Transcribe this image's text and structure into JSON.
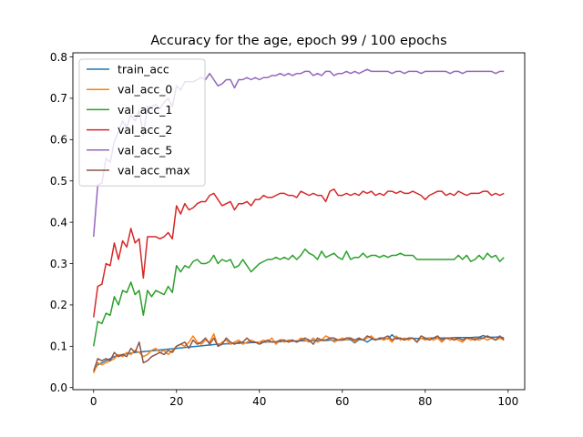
{
  "chart_data": {
    "type": "line",
    "title": "Accuracy for the age, epoch 99 / 100 epochs",
    "xlabel": "",
    "ylabel": "",
    "xlim": [
      -5,
      104
    ],
    "ylim": [
      -0.005,
      0.81
    ],
    "xticks": [
      0,
      20,
      40,
      60,
      80,
      100
    ],
    "yticks": [
      0.0,
      0.1,
      0.2,
      0.3,
      0.4,
      0.5,
      0.6,
      0.7,
      0.8
    ],
    "grid": false,
    "legend_position": "upper-left",
    "x": [
      0,
      1,
      2,
      3,
      4,
      5,
      6,
      7,
      8,
      9,
      10,
      11,
      12,
      13,
      14,
      15,
      16,
      17,
      18,
      19,
      20,
      21,
      22,
      23,
      24,
      25,
      26,
      27,
      28,
      29,
      30,
      31,
      32,
      33,
      34,
      35,
      36,
      37,
      38,
      39,
      40,
      41,
      42,
      43,
      44,
      45,
      46,
      47,
      48,
      49,
      50,
      51,
      52,
      53,
      54,
      55,
      56,
      57,
      58,
      59,
      60,
      61,
      62,
      63,
      64,
      65,
      66,
      67,
      68,
      69,
      70,
      71,
      72,
      73,
      74,
      75,
      76,
      77,
      78,
      79,
      80,
      81,
      82,
      83,
      84,
      85,
      86,
      87,
      88,
      89,
      90,
      91,
      92,
      93,
      94,
      95,
      96,
      97,
      98,
      99
    ],
    "series": [
      {
        "name": "train_acc",
        "color": "#1f77b4",
        "values": [
          0.04,
          0.055,
          0.06,
          0.065,
          0.07,
          0.075,
          0.078,
          0.08,
          0.082,
          0.083,
          0.085,
          0.086,
          0.087,
          0.088,
          0.089,
          0.09,
          0.091,
          0.092,
          0.093,
          0.094,
          0.095,
          0.096,
          0.097,
          0.098,
          0.099,
          0.1,
          0.101,
          0.102,
          0.103,
          0.104,
          0.105,
          0.105,
          0.106,
          0.106,
          0.107,
          0.107,
          0.108,
          0.108,
          0.109,
          0.109,
          0.11,
          0.11,
          0.11,
          0.111,
          0.111,
          0.111,
          0.112,
          0.112,
          0.112,
          0.113,
          0.113,
          0.113,
          0.113,
          0.114,
          0.114,
          0.114,
          0.114,
          0.115,
          0.115,
          0.115,
          0.115,
          0.116,
          0.116,
          0.108,
          0.116,
          0.116,
          0.11,
          0.117,
          0.117,
          0.117,
          0.118,
          0.118,
          0.128,
          0.118,
          0.118,
          0.118,
          0.119,
          0.119,
          0.119,
          0.119,
          0.119,
          0.12,
          0.12,
          0.12,
          0.12,
          0.12,
          0.12,
          0.121,
          0.121,
          0.121,
          0.121,
          0.121,
          0.122,
          0.122,
          0.126,
          0.122,
          0.122,
          0.122,
          0.123,
          0.12
        ]
      },
      {
        "name": "val_acc_0",
        "color": "#ff7f0e",
        "values": [
          0.035,
          0.06,
          0.055,
          0.06,
          0.065,
          0.07,
          0.08,
          0.075,
          0.085,
          0.08,
          0.09,
          0.085,
          0.075,
          0.08,
          0.09,
          0.095,
          0.085,
          0.09,
          0.08,
          0.09,
          0.1,
          0.105,
          0.1,
          0.11,
          0.125,
          0.11,
          0.105,
          0.115,
          0.11,
          0.13,
          0.1,
          0.11,
          0.115,
          0.105,
          0.11,
          0.115,
          0.105,
          0.11,
          0.115,
          0.11,
          0.11,
          0.115,
          0.11,
          0.12,
          0.105,
          0.115,
          0.11,
          0.115,
          0.115,
          0.11,
          0.12,
          0.115,
          0.11,
          0.12,
          0.11,
          0.115,
          0.125,
          0.12,
          0.11,
          0.115,
          0.12,
          0.115,
          0.12,
          0.11,
          0.12,
          0.115,
          0.12,
          0.125,
          0.115,
          0.12,
          0.115,
          0.12,
          0.11,
          0.125,
          0.115,
          0.12,
          0.115,
          0.12,
          0.11,
          0.12,
          0.115,
          0.12,
          0.115,
          0.12,
          0.11,
          0.12,
          0.115,
          0.12,
          0.115,
          0.11,
          0.12,
          0.115,
          0.12,
          0.115,
          0.12,
          0.115,
          0.12,
          0.115,
          0.12,
          0.115
        ]
      },
      {
        "name": "val_acc_1",
        "color": "#2ca02c",
        "values": [
          0.1,
          0.16,
          0.155,
          0.18,
          0.175,
          0.22,
          0.2,
          0.235,
          0.23,
          0.255,
          0.225,
          0.235,
          0.175,
          0.235,
          0.22,
          0.235,
          0.23,
          0.225,
          0.245,
          0.23,
          0.295,
          0.28,
          0.295,
          0.29,
          0.305,
          0.31,
          0.3,
          0.3,
          0.305,
          0.32,
          0.3,
          0.31,
          0.305,
          0.31,
          0.29,
          0.295,
          0.31,
          0.295,
          0.28,
          0.29,
          0.3,
          0.305,
          0.31,
          0.31,
          0.315,
          0.31,
          0.315,
          0.31,
          0.32,
          0.31,
          0.32,
          0.335,
          0.325,
          0.32,
          0.31,
          0.33,
          0.315,
          0.32,
          0.325,
          0.315,
          0.31,
          0.33,
          0.31,
          0.315,
          0.315,
          0.325,
          0.315,
          0.32,
          0.32,
          0.315,
          0.32,
          0.315,
          0.32,
          0.32,
          0.325,
          0.32,
          0.32,
          0.32,
          0.31,
          0.31,
          0.31,
          0.31,
          0.31,
          0.31,
          0.31,
          0.31,
          0.31,
          0.31,
          0.32,
          0.31,
          0.32,
          0.305,
          0.31,
          0.32,
          0.31,
          0.325,
          0.315,
          0.32,
          0.305,
          0.315
        ]
      },
      {
        "name": "val_acc_2",
        "color": "#d62728",
        "values": [
          0.17,
          0.245,
          0.25,
          0.3,
          0.295,
          0.35,
          0.31,
          0.355,
          0.34,
          0.385,
          0.35,
          0.36,
          0.265,
          0.365,
          0.365,
          0.365,
          0.36,
          0.365,
          0.375,
          0.36,
          0.44,
          0.42,
          0.445,
          0.43,
          0.435,
          0.445,
          0.45,
          0.45,
          0.465,
          0.47,
          0.455,
          0.44,
          0.445,
          0.45,
          0.43,
          0.445,
          0.445,
          0.45,
          0.44,
          0.455,
          0.455,
          0.465,
          0.46,
          0.46,
          0.465,
          0.47,
          0.47,
          0.465,
          0.465,
          0.46,
          0.475,
          0.47,
          0.465,
          0.47,
          0.465,
          0.465,
          0.45,
          0.475,
          0.48,
          0.465,
          0.465,
          0.47,
          0.465,
          0.47,
          0.465,
          0.475,
          0.47,
          0.475,
          0.465,
          0.47,
          0.465,
          0.475,
          0.475,
          0.47,
          0.475,
          0.47,
          0.47,
          0.475,
          0.47,
          0.465,
          0.455,
          0.465,
          0.47,
          0.475,
          0.475,
          0.465,
          0.47,
          0.465,
          0.475,
          0.47,
          0.465,
          0.47,
          0.47,
          0.47,
          0.475,
          0.475,
          0.465,
          0.47,
          0.465,
          0.47
        ]
      },
      {
        "name": "val_acc_5",
        "color": "#9467bd",
        "values": [
          0.365,
          0.49,
          0.495,
          0.555,
          0.545,
          0.595,
          0.62,
          0.645,
          0.63,
          0.66,
          0.645,
          0.67,
          0.61,
          0.68,
          0.68,
          0.685,
          0.675,
          0.69,
          0.7,
          0.68,
          0.73,
          0.72,
          0.74,
          0.74,
          0.74,
          0.745,
          0.75,
          0.745,
          0.76,
          0.745,
          0.73,
          0.735,
          0.745,
          0.745,
          0.725,
          0.745,
          0.745,
          0.75,
          0.745,
          0.75,
          0.745,
          0.75,
          0.75,
          0.755,
          0.755,
          0.76,
          0.755,
          0.76,
          0.755,
          0.76,
          0.76,
          0.765,
          0.765,
          0.755,
          0.76,
          0.755,
          0.765,
          0.765,
          0.755,
          0.76,
          0.76,
          0.765,
          0.76,
          0.765,
          0.76,
          0.765,
          0.77,
          0.765,
          0.765,
          0.765,
          0.765,
          0.765,
          0.76,
          0.765,
          0.765,
          0.76,
          0.765,
          0.765,
          0.765,
          0.76,
          0.765,
          0.765,
          0.765,
          0.765,
          0.765,
          0.765,
          0.76,
          0.765,
          0.765,
          0.76,
          0.765,
          0.765,
          0.765,
          0.765,
          0.765,
          0.765,
          0.765,
          0.76,
          0.765,
          0.765
        ]
      },
      {
        "name": "val_acc_max",
        "color": "#8c564b",
        "values": [
          0.04,
          0.07,
          0.065,
          0.07,
          0.065,
          0.085,
          0.075,
          0.08,
          0.075,
          0.095,
          0.085,
          0.11,
          0.06,
          0.065,
          0.075,
          0.08,
          0.085,
          0.08,
          0.09,
          0.085,
          0.1,
          0.105,
          0.11,
          0.095,
          0.115,
          0.105,
          0.11,
          0.12,
          0.105,
          0.12,
          0.1,
          0.105,
          0.12,
          0.11,
          0.105,
          0.11,
          0.11,
          0.12,
          0.11,
          0.11,
          0.105,
          0.11,
          0.115,
          0.11,
          0.11,
          0.115,
          0.115,
          0.11,
          0.115,
          0.11,
          0.115,
          0.12,
          0.115,
          0.105,
          0.12,
          0.115,
          0.115,
          0.12,
          0.12,
          0.115,
          0.115,
          0.12,
          0.12,
          0.115,
          0.12,
          0.115,
          0.125,
          0.12,
          0.115,
          0.12,
          0.12,
          0.125,
          0.115,
          0.12,
          0.12,
          0.115,
          0.12,
          0.12,
          0.11,
          0.125,
          0.12,
          0.115,
          0.12,
          0.125,
          0.115,
          0.12,
          0.12,
          0.115,
          0.12,
          0.115,
          0.12,
          0.12,
          0.115,
          0.12,
          0.12,
          0.125,
          0.12,
          0.115,
          0.125,
          0.115
        ]
      }
    ]
  }
}
